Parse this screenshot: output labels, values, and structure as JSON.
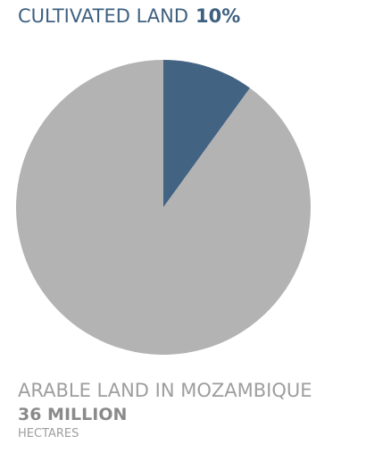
{
  "header": {
    "label": "CULTIVATED LAND",
    "percent": "10%"
  },
  "footer": {
    "title": "ARABLE LAND IN MOZAMBIQUE",
    "value": "36 MILLION",
    "unit": "HECTARES"
  },
  "chart_data": {
    "type": "pie",
    "labels": [
      "CULTIVATED LAND",
      ""
    ],
    "values": [
      10,
      90
    ],
    "colors": [
      "#436382",
      "#b3b3b3"
    ],
    "start_angle": "12 o'clock",
    "direction": "clockwise"
  }
}
